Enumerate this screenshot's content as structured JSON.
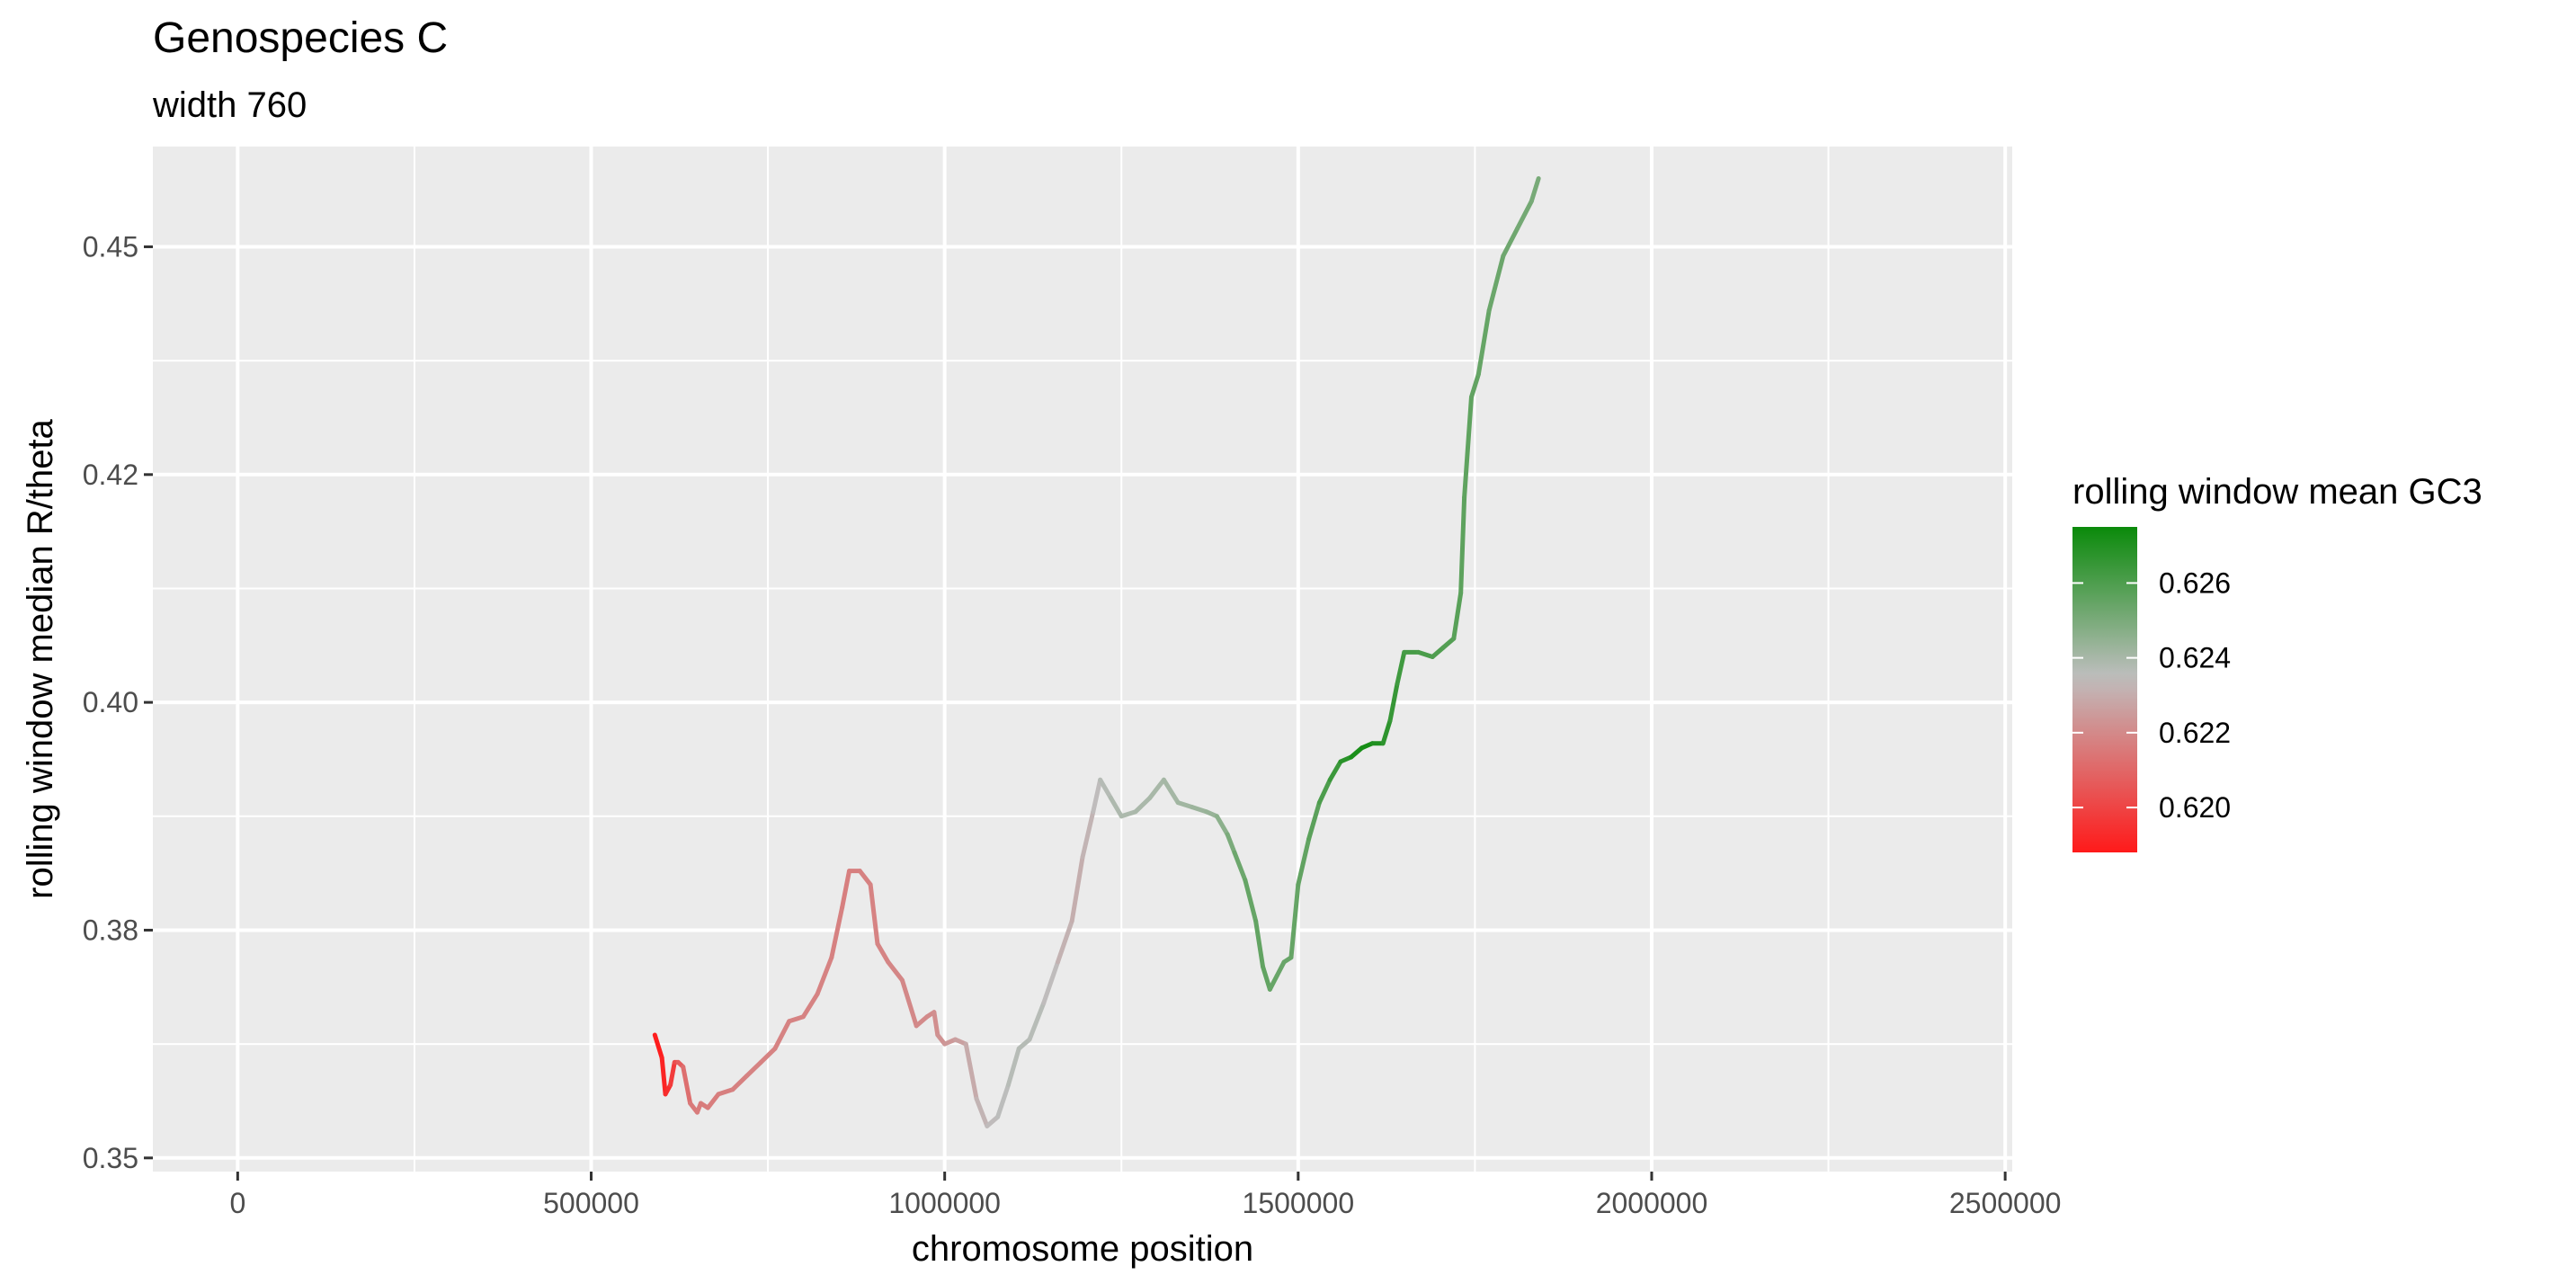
{
  "chart_data": {
    "type": "line",
    "title": "Genospecies C",
    "subtitle": "width 760",
    "xlabel": "chromosome position",
    "ylabel": "rolling window median R/theta",
    "xlim": [
      -120000,
      2510000
    ],
    "ylim": [
      0.3485,
      0.461
    ],
    "x_ticks": [
      0,
      500000,
      1000000,
      1500000,
      2000000,
      2500000
    ],
    "x_tick_labels": [
      "0",
      "500000",
      "1000000",
      "1500000",
      "2000000",
      "2500000"
    ],
    "y_ticks": [
      0.35,
      0.375,
      0.4,
      0.425,
      0.45
    ],
    "y_tick_labels": [
      "0.35",
      "0.38",
      "0.40",
      "0.42",
      "0.45"
    ],
    "grid": true,
    "legend": {
      "title": "rolling window mean GC3",
      "placement": "right",
      "type": "continuous colorbar",
      "range": [
        0.6188,
        0.6275
      ],
      "ticks": [
        0.62,
        0.622,
        0.624,
        0.626
      ],
      "tick_labels": [
        "0.620",
        "0.622",
        "0.624",
        "0.626"
      ],
      "low_color": "#ff1a1a",
      "mid_color": "#bebebe",
      "high_color": "#0a8a0a",
      "midpoint": 0.6235
    },
    "colors": {
      "panel_background": "#ebebeb",
      "grid": "#ffffff",
      "axis_text": "#4d4d4d"
    },
    "series": [
      {
        "x": [
          590000,
          600000,
          605000,
          612000,
          618000,
          623000,
          630000,
          640000,
          650000,
          655000,
          665000,
          680000,
          700000,
          720000,
          740000,
          760000,
          780000,
          800000,
          820000,
          840000,
          855000,
          865000,
          880000,
          895000,
          905000,
          920000,
          940000,
          960000,
          975000,
          985000,
          990000,
          1000000,
          1015000,
          1030000,
          1045000,
          1060000,
          1075000,
          1090000,
          1105000,
          1120000,
          1140000,
          1160000,
          1180000,
          1195000,
          1210000,
          1220000,
          1235000,
          1250000,
          1270000,
          1290000,
          1310000,
          1330000,
          1350000,
          1370000,
          1385000,
          1400000,
          1410000,
          1425000,
          1440000,
          1450000,
          1460000,
          1470000,
          1480000,
          1490000,
          1500000,
          1515000,
          1530000,
          1545000,
          1560000,
          1575000,
          1590000,
          1605000,
          1620000,
          1630000,
          1640000,
          1650000,
          1670000,
          1690000,
          1705000,
          1720000,
          1730000,
          1735000,
          1745000,
          1755000,
          1770000,
          1790000,
          1810000,
          1830000,
          1840000
        ],
        "y": [
          0.3635,
          0.361,
          0.357,
          0.358,
          0.3605,
          0.3605,
          0.36,
          0.356,
          0.355,
          0.356,
          0.3555,
          0.357,
          0.3575,
          0.359,
          0.3605,
          0.362,
          0.365,
          0.3655,
          0.368,
          0.372,
          0.3775,
          0.3815,
          0.3815,
          0.38,
          0.3735,
          0.3715,
          0.3695,
          0.3645,
          0.3655,
          0.366,
          0.3635,
          0.3625,
          0.363,
          0.3625,
          0.3565,
          0.3535,
          0.3545,
          0.358,
          0.362,
          0.363,
          0.367,
          0.3715,
          0.376,
          0.383,
          0.388,
          0.3915,
          0.3895,
          0.3875,
          0.388,
          0.3895,
          0.3915,
          0.389,
          0.3885,
          0.388,
          0.3875,
          0.3855,
          0.3835,
          0.3805,
          0.376,
          0.371,
          0.3685,
          0.37,
          0.3715,
          0.372,
          0.38,
          0.385,
          0.389,
          0.3915,
          0.3935,
          0.394,
          0.395,
          0.3955,
          0.3955,
          0.398,
          0.402,
          0.4055,
          0.4055,
          0.405,
          0.406,
          0.407,
          0.412,
          0.4225,
          0.4335,
          0.436,
          0.443,
          0.449,
          0.452,
          0.455,
          0.4575
        ],
        "gc3": [
          0.6188,
          0.619,
          0.6192,
          0.6195,
          0.62,
          0.6205,
          0.621,
          0.6215,
          0.6216,
          0.6216,
          0.6216,
          0.6217,
          0.6217,
          0.6218,
          0.6218,
          0.6218,
          0.6218,
          0.6218,
          0.6218,
          0.6218,
          0.6217,
          0.6217,
          0.6217,
          0.6218,
          0.6218,
          0.6219,
          0.6219,
          0.622,
          0.622,
          0.6221,
          0.6222,
          0.6223,
          0.6225,
          0.6228,
          0.6231,
          0.6233,
          0.6235,
          0.6236,
          0.6237,
          0.6237,
          0.6236,
          0.6233,
          0.623,
          0.6231,
          0.6233,
          0.6236,
          0.6238,
          0.6239,
          0.6239,
          0.624,
          0.624,
          0.6241,
          0.6242,
          0.6243,
          0.6244,
          0.6248,
          0.6252,
          0.6254,
          0.6255,
          0.6256,
          0.6255,
          0.6254,
          0.6254,
          0.6254,
          0.6255,
          0.6256,
          0.6258,
          0.6262,
          0.6266,
          0.627,
          0.6273,
          0.6272,
          0.6268,
          0.6266,
          0.6264,
          0.6262,
          0.6261,
          0.626,
          0.6259,
          0.6258,
          0.6257,
          0.6256,
          0.6256,
          0.6255,
          0.6254,
          0.6253,
          0.6252,
          0.6251,
          0.625
        ]
      }
    ]
  }
}
